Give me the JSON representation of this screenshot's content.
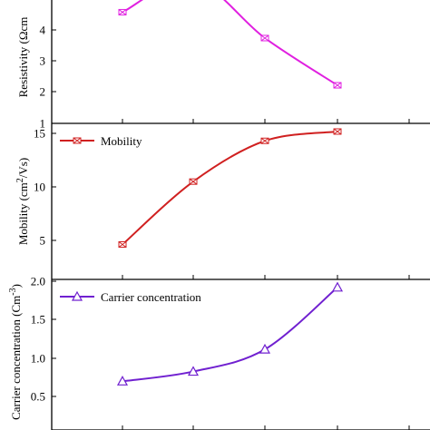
{
  "chart_data": [
    {
      "type": "line",
      "x": [
        1,
        2,
        3,
        4
      ],
      "series": [
        {
          "values": [
            4.65,
            5.7,
            3.8,
            2.25
          ],
          "color": "#e020e0",
          "marker": "x-in-box"
        }
      ],
      "ylabel": "Resistivity (Ωcm",
      "ylim": [
        1,
        5.05
      ],
      "yticks": [
        "1",
        "2",
        "3",
        "4"
      ],
      "legend": null
    },
    {
      "type": "line",
      "x": [
        1,
        2,
        3,
        4
      ],
      "series": [
        {
          "name": "Mobility",
          "values": [
            4.8,
            10.2,
            13.7,
            14.5
          ],
          "color": "#d02020",
          "marker": "x-in-box"
        }
      ],
      "ylabel": "Mobility (cm",
      "ylabel_sup": "2",
      "ylabel_tail": "/Vs)",
      "ylim": [
        1.8,
        15.2
      ],
      "yticks": [
        "5",
        "10",
        "15"
      ],
      "legend": "top-left"
    },
    {
      "type": "line",
      "x": [
        1,
        2,
        3,
        4
      ],
      "series": [
        {
          "name": "Carrier concentration",
          "values": [
            0.85,
            0.96,
            1.21,
            1.91
          ],
          "color": "#7020d0",
          "marker": "triangle"
        }
      ],
      "ylabel": "Carrier concentration (Cm",
      "ylabel_sup": "-3",
      "ylabel_tail": ")",
      "ylim": [
        0.3,
        2.0
      ],
      "yticks": [
        "0.5",
        "1.0",
        "1.5",
        "2.0"
      ],
      "legend": "top-left"
    }
  ]
}
